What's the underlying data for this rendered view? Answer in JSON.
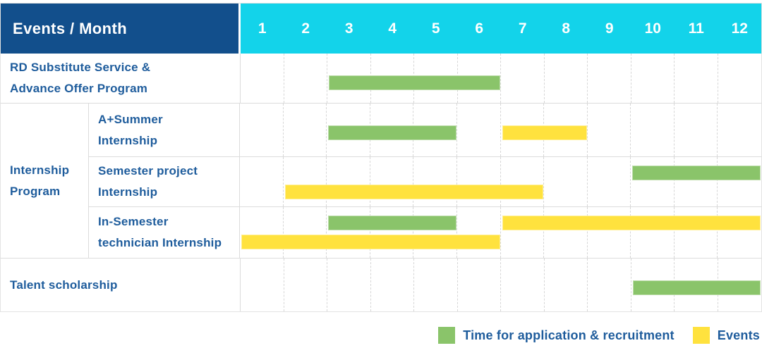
{
  "header": {
    "title": "Events / Month",
    "months": [
      "1",
      "2",
      "3",
      "4",
      "5",
      "6",
      "7",
      "8",
      "9",
      "10",
      "11",
      "12"
    ]
  },
  "colors": {
    "header_blue": "#124F8C",
    "month_cyan": "#13D3EA",
    "application_green": "#8AC46A",
    "event_yellow": "#FFE23E",
    "label_blue": "#1E5C9C"
  },
  "labels": {
    "row1": "RD Substitute Service &\nAdvance Offer Program",
    "group": "Internship\nProgram",
    "sub1": "A+Summer\nInternship",
    "sub2": "Semester project\nInternship",
    "sub3": "In-Semester\ntechnician Internship",
    "row5": "Talent scholarship"
  },
  "legend": {
    "items": [
      {
        "type": "application",
        "label": "Time for application & recruitment"
      },
      {
        "type": "event",
        "label": "Events"
      }
    ]
  },
  "chart_data": {
    "type": "gantt",
    "title": "Events / Month",
    "months": [
      1,
      2,
      3,
      4,
      5,
      6,
      7,
      8,
      9,
      10,
      11,
      12
    ],
    "bar_types": {
      "application": "Time for application & recruitment",
      "event": "Events"
    },
    "rows": [
      {
        "group": "",
        "label": "RD Substitute Service & Advance Offer Program",
        "lanes": [
          [
            {
              "type": "application",
              "start": 3,
              "end": 6
            }
          ]
        ]
      },
      {
        "group": "Internship Program",
        "label": "A+Summer Internship",
        "lanes": [
          [
            {
              "type": "application",
              "start": 3,
              "end": 5
            },
            {
              "type": "event",
              "start": 7,
              "end": 8
            }
          ]
        ]
      },
      {
        "group": "Internship Program",
        "label": "Semester project Internship",
        "lanes": [
          [
            {
              "type": "application",
              "start": 10,
              "end": 12
            }
          ],
          [
            {
              "type": "event",
              "start": 2,
              "end": 7
            }
          ]
        ]
      },
      {
        "group": "Internship Program",
        "label": "In-Semester technician Internship",
        "lanes": [
          [
            {
              "type": "application",
              "start": 3,
              "end": 5
            },
            {
              "type": "event",
              "start": 7,
              "end": 12
            }
          ],
          [
            {
              "type": "event",
              "start": 1,
              "end": 6
            }
          ]
        ]
      },
      {
        "group": "",
        "label": "Talent scholarship",
        "lanes": [
          [
            {
              "type": "application",
              "start": 10,
              "end": 12
            }
          ]
        ]
      }
    ]
  }
}
